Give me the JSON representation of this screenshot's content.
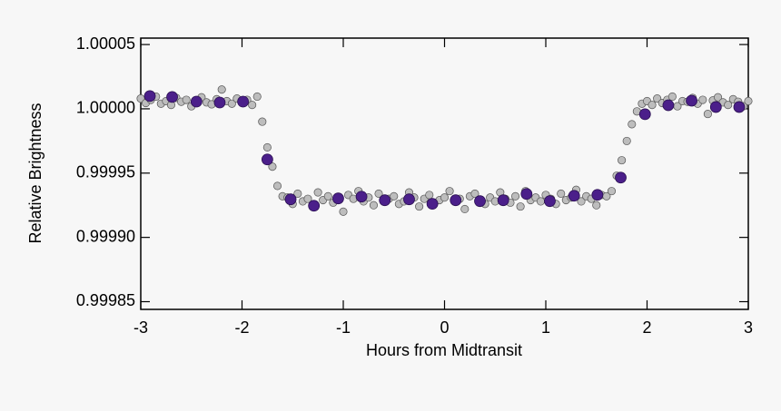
{
  "chart_data": {
    "type": "scatter",
    "xlabel": "Hours from Midtransit",
    "ylabel": "Relative Brightness",
    "xlim": [
      -3,
      3
    ],
    "xticks": [
      -3,
      -2,
      -1,
      0,
      1,
      2,
      3
    ],
    "ylim": [
      0.999844,
      1.000055
    ],
    "yticks": [
      1.00005,
      {
        "value": 1.0,
        "label": "1.00000"
      },
      0.99995,
      {
        "value": 0.9999,
        "label": "0.99990"
      },
      0.99985
    ],
    "series": [
      {
        "color": "#bdbdbd",
        "x": [
          -3,
          -2.95,
          -2.9,
          -2.85,
          -2.8,
          -2.75,
          -2.7,
          -2.65,
          -2.6,
          -2.55,
          -2.5,
          -2.45,
          -2.4,
          -2.35,
          -2.3,
          -2.25,
          -2.2,
          -2.15,
          -2.1,
          -2.05,
          -2,
          -1.95,
          -1.9,
          -1.85,
          -1.8,
          -1.75,
          -1.7,
          -1.65,
          -1.6,
          -1.55,
          -1.5,
          -1.45,
          -1.4,
          -1.35,
          -1.3,
          -1.25,
          -1.2,
          -1.15,
          -1.1,
          -1.05,
          -1,
          -0.95,
          -0.9,
          -0.85,
          -0.8,
          -0.75,
          -0.7,
          -0.65,
          -0.6,
          -0.55,
          -0.5,
          -0.45,
          -0.4,
          -0.35,
          -0.3,
          -0.25,
          -0.2,
          -0.15,
          -0.1,
          -0.05,
          0,
          0.05,
          0.1,
          0.15,
          0.2,
          0.25,
          0.3,
          0.35,
          0.4,
          0.45,
          0.5,
          0.55,
          0.6,
          0.65,
          0.7,
          0.75,
          0.8,
          0.85,
          0.9,
          0.95,
          1,
          1.05,
          1.1,
          1.15,
          1.2,
          1.25,
          1.3,
          1.35,
          1.4,
          1.45,
          1.5,
          1.55,
          1.6,
          1.65,
          1.7,
          1.75,
          1.8,
          1.85,
          1.9,
          1.95,
          2,
          2.05,
          2.1,
          2.15,
          2.2,
          2.25,
          2.3,
          2.35,
          2.4,
          2.45,
          2.5,
          2.55,
          2.6,
          2.65,
          2.7,
          2.75,
          2.8,
          2.85,
          2.9,
          2.95,
          3
        ],
        "values": [
          1.000008,
          1.0000045,
          1.000007,
          1.0000095,
          1.000004,
          1.000006,
          1.000003,
          1.0000085,
          1.0000055,
          1.000007,
          1.000002,
          1.0000065,
          1.000009,
          1.000005,
          1.0000035,
          1.0000075,
          1.000015,
          1.000006,
          1.000004,
          1.000008,
          1.0000055,
          1.000007,
          1.000003,
          1.0000095,
          0.99999,
          0.99997,
          0.999955,
          0.99994,
          0.999932,
          0.999931,
          0.999926,
          0.999934,
          0.999928,
          0.99993,
          0.999924,
          0.999935,
          0.999929,
          0.999932,
          0.999927,
          0.999931,
          0.99992,
          0.999933,
          0.99993,
          0.999936,
          0.999928,
          0.999931,
          0.999925,
          0.999934,
          0.999929,
          0.99993,
          0.999932,
          0.999926,
          0.999928,
          0.999935,
          0.999931,
          0.999924,
          0.99993,
          0.999933,
          0.999927,
          0.999929,
          0.999931,
          0.999936,
          0.999928,
          0.99993,
          0.999922,
          0.999932,
          0.999934,
          0.999929,
          0.999926,
          0.999931,
          0.999928,
          0.999935,
          0.99993,
          0.999927,
          0.999932,
          0.999924,
          0.999936,
          0.999929,
          0.999931,
          0.999928,
          0.999933,
          0.99993,
          0.999926,
          0.999934,
          0.999929,
          0.999931,
          0.999937,
          0.999928,
          0.999932,
          0.99993,
          0.999925,
          0.999933,
          0.999932,
          0.999936,
          0.999948,
          0.99996,
          0.999975,
          0.999988,
          0.999998,
          1.000004,
          1.000006,
          1.000003,
          1.000008,
          1.0000045,
          1.000007,
          1.0000095,
          1.000002,
          1.000006,
          1.0000055,
          1.0000085,
          1.000004,
          1.000007,
          0.999996,
          1.0000065,
          1.000009,
          1.000005,
          1.000003,
          1.0000075,
          1.0000055,
          1.000002,
          1.000006
        ]
      },
      {
        "color": "#4b1f8a",
        "x": [
          -2.91,
          -2.69,
          -2.45,
          -2.22,
          -1.99,
          -1.75,
          -1.52,
          -1.29,
          -1.05,
          -0.82,
          -0.59,
          -0.35,
          -0.12,
          0.11,
          0.35,
          0.58,
          0.81,
          1.04,
          1.28,
          1.51,
          1.74,
          1.98,
          2.21,
          2.44,
          2.68,
          2.91
        ],
        "values": [
          1.0000099,
          1.0000092,
          1.0000056,
          1.0000049,
          1.0000056,
          0.9999606,
          0.9999296,
          0.9999246,
          0.9999303,
          0.9999317,
          0.9999289,
          0.9999296,
          0.9999261,
          0.9999289,
          0.9999282,
          0.9999289,
          0.9999338,
          0.9999282,
          0.9999324,
          0.9999331,
          0.9999465,
          0.9999958,
          1.0000028,
          1.0000063,
          1.0000014,
          1.0000014
        ]
      }
    ]
  }
}
